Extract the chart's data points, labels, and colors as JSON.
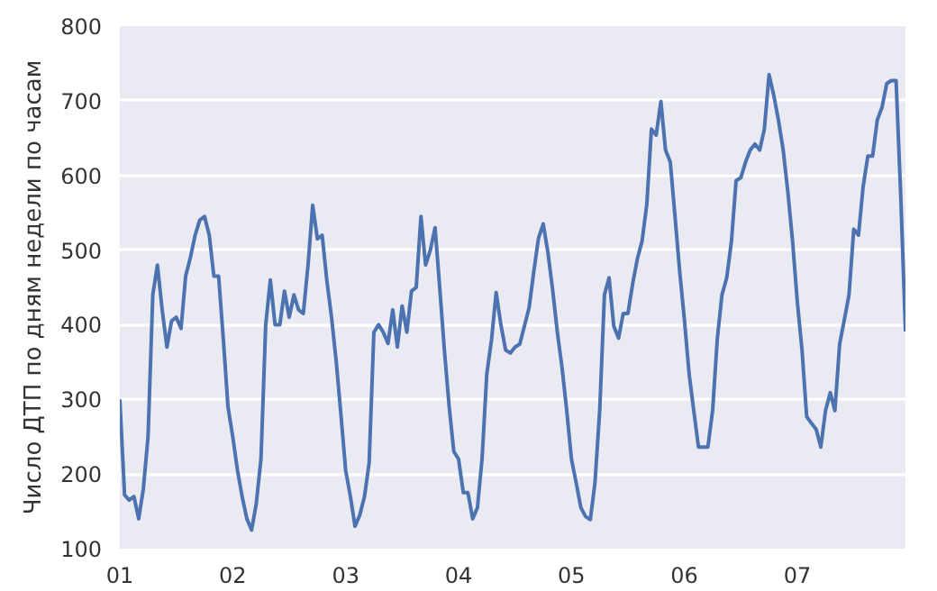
{
  "chart_data": {
    "type": "line",
    "ylabel": "Число ДТП по дням недели по часам",
    "x": [
      1,
      1.042,
      1.083,
      1.125,
      1.167,
      1.208,
      1.25,
      1.292,
      1.333,
      1.375,
      1.417,
      1.458,
      1.5,
      1.542,
      1.583,
      1.625,
      1.667,
      1.708,
      1.75,
      1.792,
      1.833,
      1.875,
      1.917,
      1.958,
      2,
      2.042,
      2.083,
      2.125,
      2.167,
      2.208,
      2.25,
      2.292,
      2.333,
      2.375,
      2.417,
      2.458,
      2.5,
      2.542,
      2.583,
      2.625,
      2.667,
      2.708,
      2.75,
      2.792,
      2.833,
      2.875,
      2.917,
      2.958,
      3,
      3.042,
      3.083,
      3.125,
      3.167,
      3.208,
      3.25,
      3.292,
      3.333,
      3.375,
      3.417,
      3.458,
      3.5,
      3.542,
      3.583,
      3.625,
      3.667,
      3.708,
      3.75,
      3.792,
      3.833,
      3.875,
      3.917,
      3.958,
      4,
      4.042,
      4.083,
      4.125,
      4.167,
      4.208,
      4.25,
      4.292,
      4.333,
      4.375,
      4.417,
      4.458,
      4.5,
      4.542,
      4.583,
      4.625,
      4.667,
      4.708,
      4.75,
      4.792,
      4.833,
      4.875,
      4.917,
      4.958,
      5,
      5.042,
      5.083,
      5.125,
      5.167,
      5.208,
      5.25,
      5.292,
      5.333,
      5.375,
      5.417,
      5.458,
      5.5,
      5.542,
      5.583,
      5.625,
      5.667,
      5.708,
      5.75,
      5.792,
      5.833,
      5.875,
      5.917,
      5.958,
      6,
      6.042,
      6.083,
      6.125,
      6.167,
      6.208,
      6.25,
      6.292,
      6.333,
      6.375,
      6.417,
      6.458,
      6.5,
      6.542,
      6.583,
      6.625,
      6.667,
      6.708,
      6.75,
      6.792,
      6.833,
      6.875,
      6.917,
      6.958,
      7,
      7.042,
      7.083,
      7.125,
      7.167,
      7.208,
      7.25,
      7.292,
      7.333,
      7.375,
      7.417,
      7.458,
      7.5,
      7.542,
      7.583,
      7.625,
      7.667,
      7.708,
      7.75,
      7.792,
      7.833,
      7.875,
      7.917,
      7.958
    ],
    "series": [
      {
        "color": "#4c72b0",
        "values": [
          300,
          172,
          165,
          170,
          140,
          180,
          250,
          440,
          480,
          420,
          370,
          405,
          410,
          395,
          465,
          490,
          520,
          540,
          545,
          520,
          465,
          465,
          380,
          290,
          250,
          205,
          170,
          140,
          125,
          160,
          220,
          400,
          460,
          400,
          400,
          445,
          410,
          440,
          420,
          415,
          480,
          560,
          515,
          520,
          460,
          410,
          350,
          280,
          205,
          170,
          130,
          145,
          170,
          215,
          390,
          400,
          390,
          375,
          420,
          370,
          425,
          390,
          445,
          450,
          545,
          480,
          500,
          530,
          450,
          365,
          290,
          230,
          220,
          175,
          175,
          140,
          155,
          220,
          334,
          380,
          443,
          400,
          366,
          362,
          370,
          374,
          398,
          423,
          472,
          516,
          535,
          496,
          447,
          390,
          342,
          285,
          220,
          188,
          155,
          143,
          139,
          188,
          285,
          440,
          463,
          398,
          382,
          415,
          415,
          455,
          488,
          512,
          561,
          662,
          654,
          699,
          634,
          618,
          545,
          472,
          407,
          334,
          285,
          236,
          236,
          236,
          285,
          382,
          440,
          463,
          512,
          593,
          597,
          618,
          634,
          642,
          634,
          662,
          735,
          707,
          674,
          634,
          577,
          512,
          431,
          366,
          277,
          268,
          260,
          236,
          285,
          309,
          285,
          374,
          407,
          440,
          528,
          520,
          585,
          626,
          626,
          674,
          691,
          723,
          727,
          727,
          569,
          391
        ]
      }
    ],
    "xlim": [
      1,
      7.958
    ],
    "xticks": [
      {
        "value": 1,
        "label": "01"
      },
      {
        "value": 2,
        "label": "02"
      },
      {
        "value": 3,
        "label": "03"
      },
      {
        "value": 4,
        "label": "04"
      },
      {
        "value": 5,
        "label": "05"
      },
      {
        "value": 6,
        "label": "06"
      },
      {
        "value": 7,
        "label": "07"
      }
    ],
    "ylim": [
      100,
      800
    ],
    "yticks": [
      100,
      200,
      300,
      400,
      500,
      600,
      700,
      800
    ],
    "grid": "y",
    "marker": "none",
    "line_style": "solid"
  }
}
